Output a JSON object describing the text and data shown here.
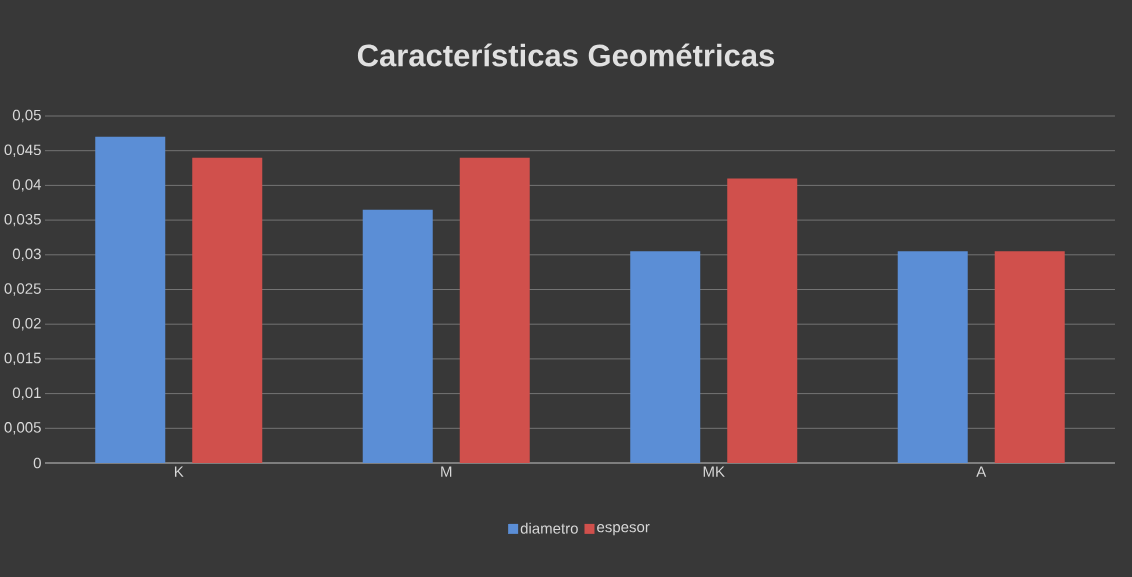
{
  "chart_data": {
    "type": "bar",
    "title": "Características Geométricas",
    "categories": [
      "K",
      "M",
      "MK",
      "A"
    ],
    "series": [
      {
        "name": "diametro",
        "color": "#5b8ed6",
        "values": [
          0.047,
          0.0365,
          0.0305,
          0.0305
        ]
      },
      {
        "name": "espesor",
        "color": "#d0504c",
        "values": [
          0.044,
          0.044,
          0.041,
          0.0305
        ]
      }
    ],
    "ylim": [
      0,
      0.05
    ],
    "yticks": [
      0,
      {
        "value": 0.005,
        "label": "0,005"
      },
      {
        "value": 0.01,
        "label": "0,01"
      },
      {
        "value": 0.015,
        "label": "0,015"
      },
      {
        "value": 0.02,
        "label": "0,02"
      },
      {
        "value": 0.025,
        "label": "0,025"
      },
      {
        "value": 0.03,
        "label": "0,03"
      },
      {
        "value": 0.035,
        "label": "0,035"
      },
      {
        "value": 0.04,
        "label": "0,04"
      },
      {
        "value": 0.045,
        "label": "0,045"
      },
      {
        "value": 0.05,
        "label": "0,05"
      }
    ],
    "grid": "y",
    "legend": "bottom"
  }
}
